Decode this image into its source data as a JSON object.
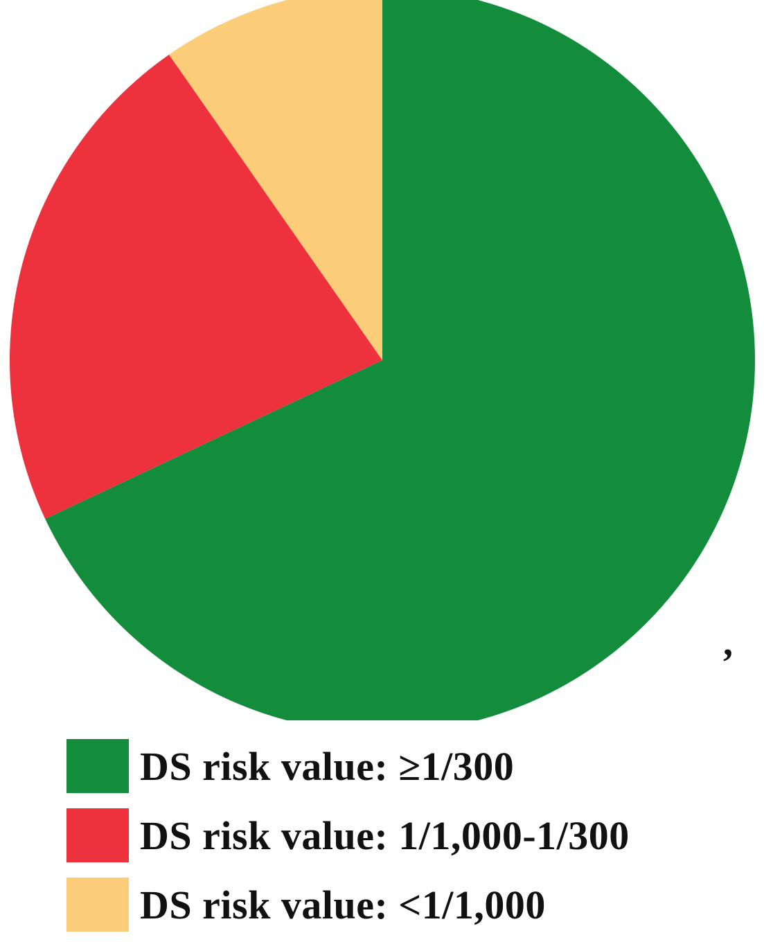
{
  "chart_data": {
    "type": "pie",
    "start_angle": "12 o'clock",
    "direction": "clockwise",
    "slices": [
      {
        "label": "DS risk value: ≥1/300",
        "value": 68,
        "color": "#138d3b"
      },
      {
        "label": "DS risk value: 1/1,000-1/300",
        "value": 22.3,
        "color": "#ee323d"
      },
      {
        "label": "DS risk value: <1/1,000",
        "value": 9.7,
        "color": "#fccd79"
      }
    ],
    "legend_position": "bottom",
    "stray_mark": ","
  }
}
